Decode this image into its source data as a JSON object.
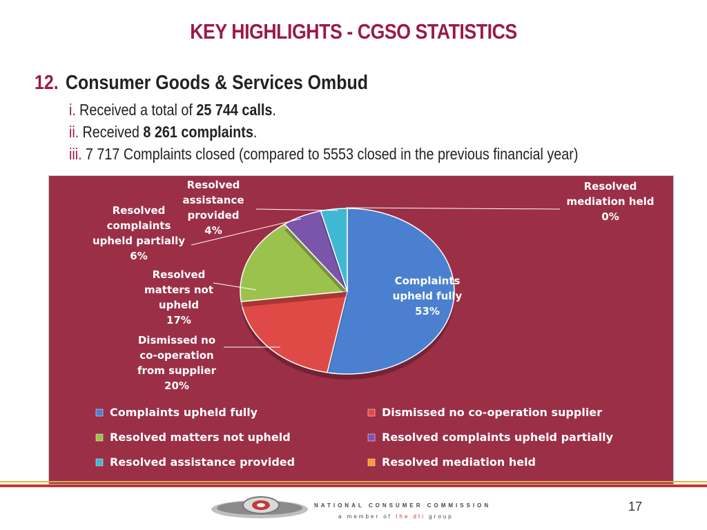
{
  "header": {
    "title": "KEY HIGHLIGHTS - CGSO STATISTICS"
  },
  "section": {
    "number": "12.",
    "heading": "Consumer Goods & Services Ombud",
    "items": [
      {
        "marker": "i.",
        "pre": "Received a total of ",
        "bold": "25 744 calls",
        "post": "."
      },
      {
        "marker": "ii.",
        "pre": "Received ",
        "bold": "8 261 complaints",
        "post": "."
      },
      {
        "marker": "iii.",
        "pre": "7 717 Complaints closed (compared to 5553 closed in the previous financial year)",
        "bold": "",
        "post": ""
      }
    ]
  },
  "chart_data": {
    "type": "pie",
    "slices": [
      {
        "name": "Complaints upheld fully",
        "value": 53,
        "color": "#4a80cf",
        "label_lines": [
          "Complaints",
          "upheld fully",
          "53%"
        ]
      },
      {
        "name": "Dismissed no co-operation supplier",
        "value": 20,
        "color": "#e04a46",
        "label_lines": [
          "Dismissed no",
          "co-operation",
          "from supplier",
          "20%"
        ]
      },
      {
        "name": "Resolved matters not upheld",
        "value": 17,
        "color": "#9cc24e",
        "label_lines": [
          "Resolved",
          "matters not",
          "upheld",
          "17%"
        ]
      },
      {
        "name": "Resolved complaints upheld partially",
        "value": 6,
        "color": "#7b55ab",
        "label_lines": [
          "Resolved",
          "complaints",
          "upheld partially",
          "6%"
        ]
      },
      {
        "name": "Resolved assistance provided",
        "value": 4,
        "color": "#3fb8d4",
        "label_lines": [
          "Resolved",
          "assistance",
          "provided",
          "4%"
        ]
      },
      {
        "name": "Resolved mediation held",
        "value": 0,
        "color": "#f59b2f",
        "label_lines": [
          "Resolved",
          "mediation held",
          "0%"
        ]
      }
    ],
    "legend_placement": "bottom"
  },
  "footer": {
    "org": "NATIONAL CONSUMER COMMISSION",
    "sub_pre": "a member of ",
    "sub_hl": "the dti",
    "sub_post": " group",
    "page": "17"
  }
}
